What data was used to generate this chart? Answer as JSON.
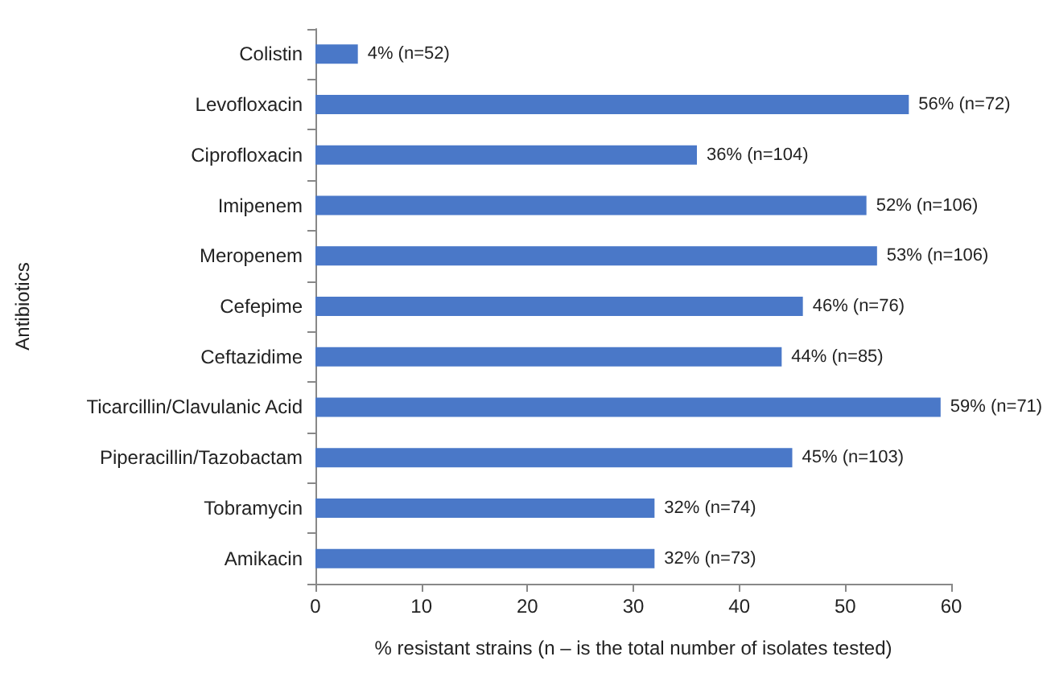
{
  "chart_data": {
    "type": "bar",
    "orientation": "horizontal",
    "xlabel": "% resistant strains (n – is the total number of isolates tested)",
    "ylabel": "Antibiotics",
    "categories": [
      "Colistin",
      "Levofloxacin",
      "Ciprofloxacin",
      "Imipenem",
      "Meropenem",
      "Cefepime",
      "Ceftazidime",
      "Ticarcillin/Clavulanic Acid",
      "Piperacillin/Tazobactam",
      "Tobramycin",
      "Amikacin"
    ],
    "values": [
      4,
      56,
      36,
      52,
      53,
      46,
      44,
      59,
      45,
      32,
      32
    ],
    "value_labels": [
      "4% (n=52)",
      "56% (n=72)",
      "36% (n=104)",
      "52% (n=106)",
      "53% (n=106)",
      "46% (n=76)",
      "44% (n=85)",
      "59% (n=71)",
      "45% (n=103)",
      "32% (n=74)",
      "32% (n=73)"
    ],
    "color": "#4a78c8",
    "xlim": [
      0,
      60
    ],
    "xticks": [
      0,
      10,
      20,
      30,
      40,
      50,
      60
    ],
    "grid": false
  }
}
